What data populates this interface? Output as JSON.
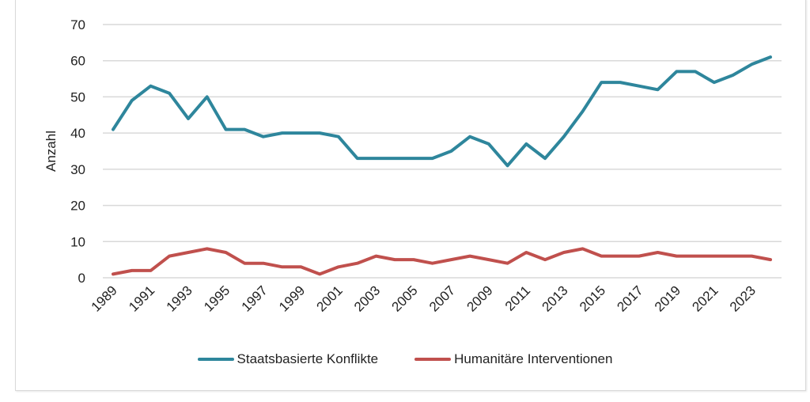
{
  "chart_data": {
    "type": "line",
    "title": "",
    "xlabel": "",
    "ylabel": "Anzahl",
    "ylim": [
      0,
      70
    ],
    "yticks": [
      0,
      10,
      20,
      30,
      40,
      50,
      60,
      70
    ],
    "grid": true,
    "legend_position": "bottom",
    "x": [
      1989,
      1990,
      1991,
      1992,
      1993,
      1994,
      1995,
      1996,
      1997,
      1998,
      1999,
      2000,
      2001,
      2002,
      2003,
      2004,
      2005,
      2006,
      2007,
      2008,
      2009,
      2010,
      2011,
      2012,
      2013,
      2014,
      2015,
      2016,
      2017,
      2018,
      2019,
      2020,
      2021,
      2022,
      2023,
      2024
    ],
    "xtick_labels": [
      "1989",
      "1991",
      "1993",
      "1995",
      "1997",
      "1999",
      "2001",
      "2003",
      "2005",
      "2007",
      "2009",
      "2011",
      "2013",
      "2015",
      "2017",
      "2019",
      "2021",
      "2023"
    ],
    "series": [
      {
        "name": "Staatsbasierte Konflikte",
        "color": "#2e869c",
        "values": [
          41,
          49,
          53,
          51,
          44,
          50,
          41,
          41,
          39,
          40,
          40,
          40,
          39,
          33,
          33,
          33,
          33,
          33,
          35,
          39,
          37,
          31,
          37,
          33,
          39,
          46,
          54,
          54,
          53,
          52,
          57,
          57,
          54,
          56,
          59,
          61
        ]
      },
      {
        "name": "Humanitäre Interventionen",
        "color": "#c0504d",
        "values": [
          1,
          2,
          2,
          6,
          7,
          8,
          7,
          4,
          4,
          3,
          3,
          1,
          3,
          4,
          6,
          5,
          5,
          4,
          5,
          6,
          5,
          4,
          7,
          5,
          7,
          8,
          6,
          6,
          6,
          7,
          6,
          6,
          6,
          6,
          6,
          5
        ]
      }
    ]
  }
}
